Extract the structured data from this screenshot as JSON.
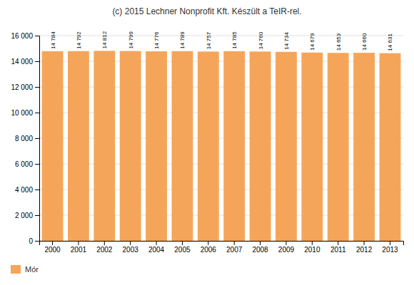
{
  "chart_data": {
    "type": "bar",
    "title": "(c) 2015 Lechner Nonprofit Kft. Készült a TeIR-rel.",
    "categories": [
      "2000",
      "2001",
      "2002",
      "2003",
      "2004",
      "2005",
      "2006",
      "2007",
      "2008",
      "2009",
      "2010",
      "2011",
      "2012",
      "2013"
    ],
    "series": [
      {
        "name": "Mór",
        "color": "#F5A55A",
        "values": [
          14784,
          14792,
          14812,
          14799,
          14776,
          14789,
          14757,
          14785,
          14760,
          14734,
          14679,
          14653,
          14660,
          14631
        ],
        "value_labels": [
          "14 784",
          "14 792",
          "14 812",
          "14 799",
          "14 776",
          "14 789",
          "14 757",
          "14 785",
          "14 760",
          "14 734",
          "14 679",
          "14 653",
          "14 660",
          "14 631"
        ]
      }
    ],
    "ylim": [
      0,
      16000
    ],
    "yticks": [
      0,
      {
        "value": 2000,
        "label": "2 000"
      },
      {
        "value": 4000,
        "label": "4 000"
      },
      {
        "value": 6000,
        "label": "6 000"
      },
      {
        "value": 8000,
        "label": "8 000"
      },
      {
        "value": 10000,
        "label": "10 000"
      },
      {
        "value": 12000,
        "label": "12 000"
      },
      {
        "value": 14000,
        "label": "14 000"
      },
      {
        "value": 16000,
        "label": "16 000"
      }
    ],
    "grid": true,
    "data_labels": true,
    "legend": "bottom"
  }
}
